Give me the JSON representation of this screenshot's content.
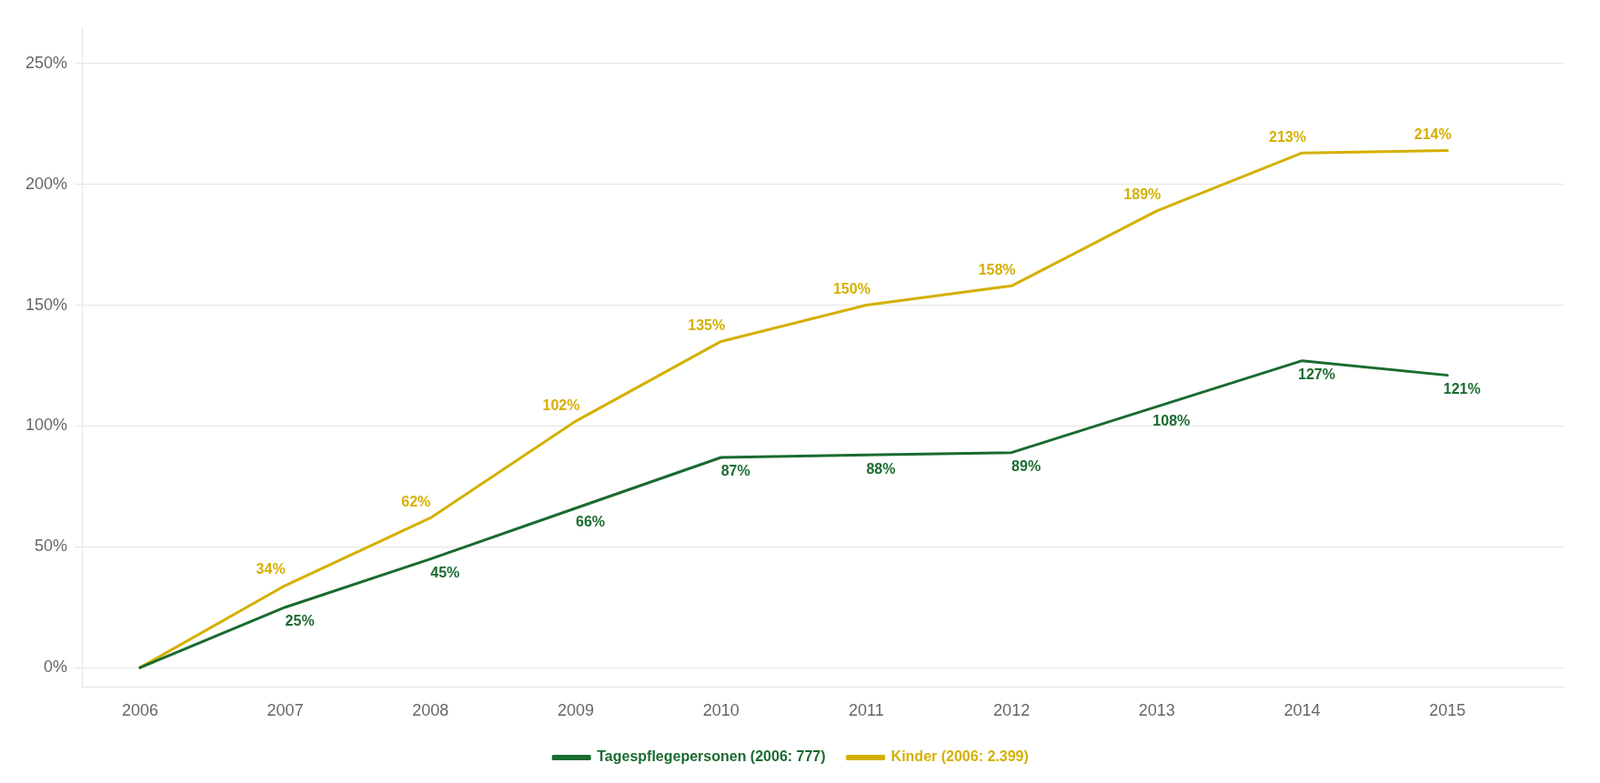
{
  "chart_data": {
    "type": "line",
    "x": [
      2006,
      2007,
      2008,
      2009,
      2010,
      2011,
      2012,
      2013,
      2014,
      2015
    ],
    "series": [
      {
        "name": "Tagespflegepersonen (2006: 777)",
        "color": "#1a6b2f",
        "values": [
          0,
          25,
          45,
          66,
          87,
          88,
          89,
          108,
          127,
          121
        ],
        "value_labels": [
          null,
          "25%",
          "45%",
          "66%",
          "87%",
          "88%",
          "89%",
          "108%",
          "127%",
          "121%"
        ]
      },
      {
        "name": "Kinder (2006: 2.399)",
        "color": "#d4b000",
        "values": [
          0,
          34,
          62,
          102,
          135,
          150,
          158,
          189,
          213,
          214
        ],
        "value_labels": [
          null,
          "34%",
          "62%",
          "102%",
          "135%",
          "150%",
          "158%",
          "189%",
          "213%",
          "214%"
        ]
      }
    ],
    "xlim": [
      2005.6,
      2015.8
    ],
    "xticks": [
      2006,
      2007,
      2008,
      2009,
      2010,
      2011,
      2012,
      2013,
      2014,
      2015
    ],
    "ylim": [
      -8,
      265
    ],
    "yticks": [
      {
        "value": 0,
        "label": "0%"
      },
      {
        "value": 50,
        "label": "50%"
      },
      {
        "value": 100,
        "label": "100%"
      },
      {
        "value": 150,
        "label": "150%"
      },
      {
        "value": 200,
        "label": "200%"
      },
      {
        "value": 250,
        "label": "250%"
      }
    ],
    "grid": true,
    "legend": "bottom",
    "data_labels": true
  }
}
